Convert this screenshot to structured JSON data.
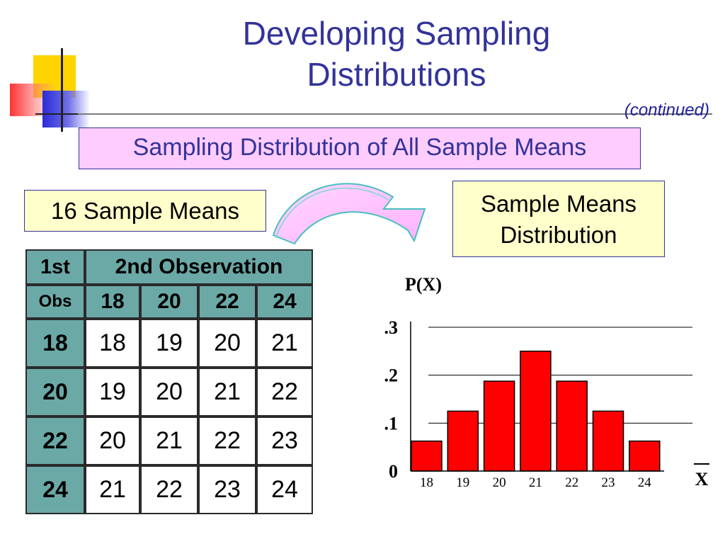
{
  "slide": {
    "title_line1": "Developing Sampling",
    "title_line2": "Distributions",
    "continued": "(continued)",
    "subtitle": "Sampling Distribution of All Sample Means",
    "left_label": "16 Sample Means",
    "right_label_line1": "Sample Means",
    "right_label_line2": "Distribution"
  },
  "table": {
    "corner_top": "1st",
    "corner_bottom": "Obs",
    "header": "2nd Observation",
    "columns": [
      "18",
      "20",
      "22",
      "24"
    ],
    "rows": [
      {
        "label": "18",
        "values": [
          "18",
          "19",
          "20",
          "21"
        ]
      },
      {
        "label": "20",
        "values": [
          "19",
          "20",
          "21",
          "22"
        ]
      },
      {
        "label": "22",
        "values": [
          "20",
          "21",
          "22",
          "23"
        ]
      },
      {
        "label": "24",
        "values": [
          "21",
          "22",
          "23",
          "24"
        ]
      }
    ]
  },
  "colors": {
    "title": "#333399",
    "bar": "#ff0000",
    "table_header": "#6ba9a7",
    "pink_box": "#ffccff",
    "yellow_box": "#ffffcc"
  },
  "chart_data": {
    "type": "bar",
    "ylabel": "P(X)",
    "xlabel": "X",
    "categories": [
      "18",
      "19",
      "20",
      "21",
      "22",
      "23",
      "24"
    ],
    "values": [
      0.0625,
      0.125,
      0.1875,
      0.25,
      0.1875,
      0.125,
      0.0625
    ],
    "ylim": [
      0,
      0.3
    ],
    "yticks": [
      0,
      0.1,
      0.2,
      0.3
    ],
    "ytick_labels": [
      "0",
      ".1",
      ".2",
      ".3"
    ],
    "grid": true,
    "bar_color": "#ff0000"
  }
}
